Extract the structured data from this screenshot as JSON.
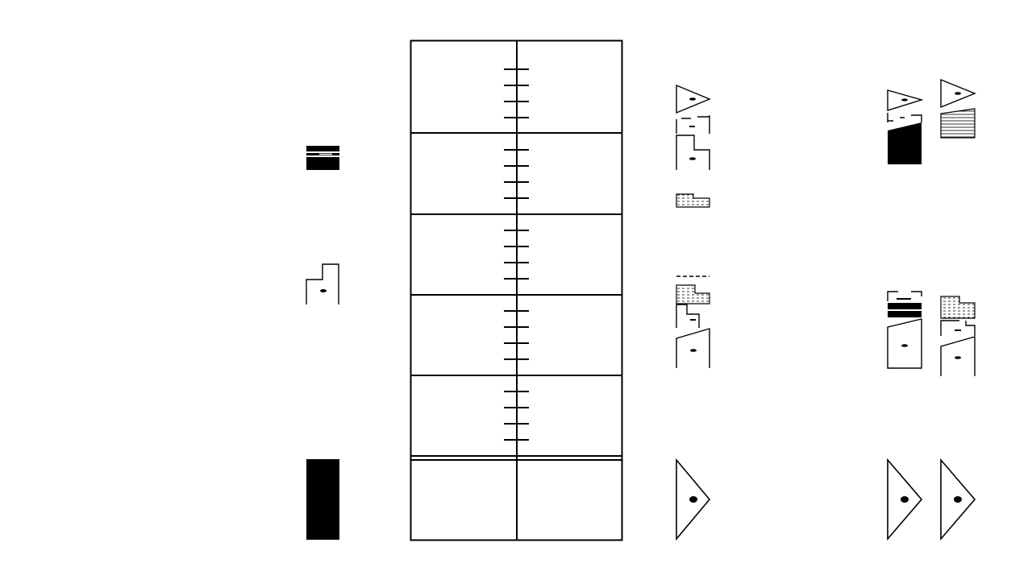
{
  "diagram": {
    "kind": "stratigraphic-section-correlation",
    "background": "#ffffff",
    "ink": "#000000",
    "fills": {
      "solid": "#000000",
      "empty": "#ffffff",
      "dashed": "dash-hatch",
      "lined": "horizontal-lines"
    },
    "scale_column": {
      "major_intervals": 5,
      "minor_ticks_per_interval": 4,
      "has_double_base_line": true,
      "basal_unit_present": true
    },
    "columns": [
      {
        "id": "left-column",
        "units": [
          {
            "id": "banded-solid-unit",
            "fill": "solid",
            "pattern": "banded"
          },
          {
            "id": "stepped-dot-unit",
            "fill": "empty",
            "symbol": "dot"
          },
          {
            "id": "basal-solid-unit",
            "fill": "solid"
          }
        ]
      },
      {
        "id": "middle-column",
        "units": [
          {
            "id": "wedge-top-unit",
            "fill": "empty",
            "symbol": "dot"
          },
          {
            "id": "broken-box-unit",
            "fill": "empty",
            "symbol": "dash"
          },
          {
            "id": "stepped-dot-unit",
            "fill": "empty",
            "symbol": "dot"
          },
          {
            "id": "dashed-lens-unit",
            "fill": "dashed"
          },
          {
            "id": "thin-dashed-cap",
            "fill": "dashed"
          },
          {
            "id": "dashed-block-unit",
            "fill": "dashed"
          },
          {
            "id": "stepped-small-unit",
            "fill": "empty",
            "symbol": "dash"
          },
          {
            "id": "slanted-dot-unit",
            "fill": "empty",
            "symbol": "dot"
          },
          {
            "id": "basal-wedge-unit",
            "fill": "empty",
            "symbol": "dot"
          }
        ]
      },
      {
        "id": "right-column-a",
        "units": [
          {
            "id": "wedge-top-unit",
            "fill": "empty",
            "symbol": "dot"
          },
          {
            "id": "solid-slanted-unit",
            "fill": "solid"
          },
          {
            "id": "interbedded-solid-unit",
            "fill": "solid",
            "pattern": "interbedded"
          },
          {
            "id": "slanted-dot-unit",
            "fill": "empty",
            "symbol": "dot"
          },
          {
            "id": "basal-wedge-unit",
            "fill": "empty",
            "symbol": "dot"
          }
        ]
      },
      {
        "id": "right-column-b",
        "units": [
          {
            "id": "wedge-top-unit",
            "fill": "empty",
            "symbol": "dot"
          },
          {
            "id": "lined-slanted-unit",
            "fill": "lined"
          },
          {
            "id": "dashed-lens-unit",
            "fill": "dashed"
          },
          {
            "id": "broken-box-unit",
            "fill": "empty",
            "symbol": "dash"
          },
          {
            "id": "slanted-dot-unit",
            "fill": "empty",
            "symbol": "dot"
          },
          {
            "id": "basal-wedge-unit",
            "fill": "empty",
            "symbol": "dot"
          }
        ]
      }
    ]
  }
}
